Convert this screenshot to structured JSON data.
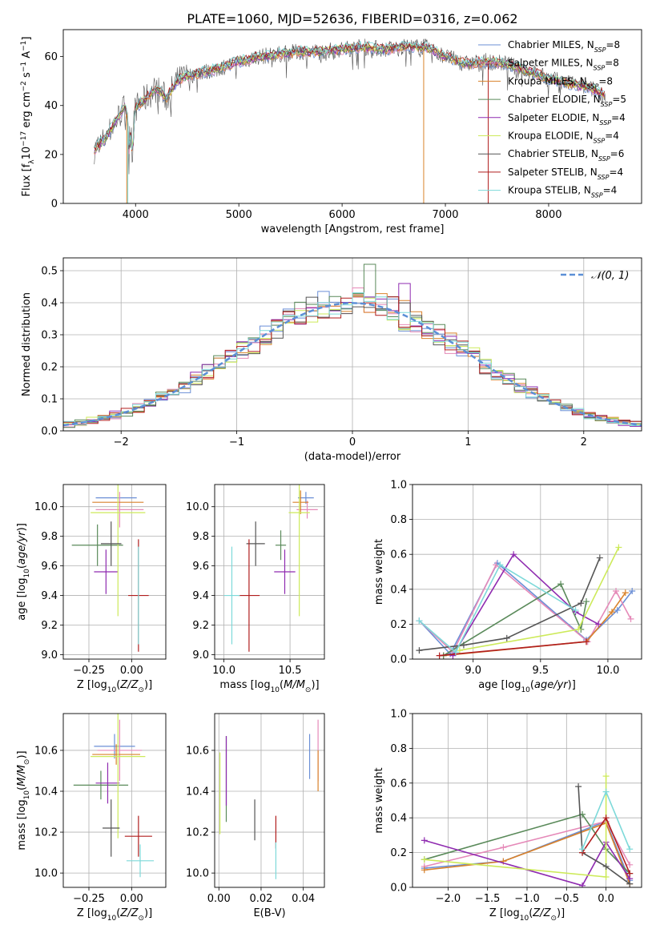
{
  "title": "PLATE=1060, MJD=52636, FIBERID=0316, z=0.062",
  "colors": {
    "Chabrier MILES": "#6b8fd6",
    "Salpeter MILES": "#e589b8",
    "Kroupa MILES": "#d9822b",
    "Chabrier ELODIE": "#5a8a5a",
    "Salpeter ELODIE": "#8f2bb0",
    "Kroupa ELODIE": "#cdea5a",
    "Chabrier STELIB": "#555555",
    "Salpeter STELIB": "#b01e1e",
    "Kroupa STELIB": "#7dd9d9",
    "normal": "#5b8fd6"
  },
  "legend_spectrum": [
    {
      "name": "Chabrier MILES",
      "nssp": "8"
    },
    {
      "name": "Salpeter MILES",
      "nssp": "8"
    },
    {
      "name": "Kroupa MILES",
      "nssp": "8"
    },
    {
      "name": "Chabrier ELODIE",
      "nssp": "5"
    },
    {
      "name": "Salpeter ELODIE",
      "nssp": "4"
    },
    {
      "name": "Kroupa ELODIE",
      "nssp": "4"
    },
    {
      "name": "Chabrier STELIB",
      "nssp": "6"
    },
    {
      "name": "Salpeter STELIB",
      "nssp": "4"
    },
    {
      "name": "Kroupa STELIB",
      "nssp": "4"
    }
  ],
  "chart_data": [
    {
      "id": "spectrum",
      "type": "line",
      "xlabel": "wavelength [Angstrom, rest frame]",
      "ylabel": "Flux [f_λ 10^-17 erg cm^-2 s^-1 A^-1]",
      "xlim": [
        3300,
        8900
      ],
      "ylim": [
        0,
        71
      ],
      "xticks": [
        4000,
        5000,
        6000,
        7000,
        8000
      ],
      "yticks": [
        0,
        20,
        40,
        60
      ],
      "x": [
        3600,
        3700,
        3800,
        3900,
        3950,
        4000,
        4100,
        4200,
        4300,
        4400,
        4500,
        4600,
        4800,
        5000,
        5200,
        5400,
        5600,
        5800,
        6000,
        6200,
        6400,
        6600,
        6800,
        7000,
        7200,
        7400,
        7600,
        7800,
        8000,
        8200,
        8400,
        8550
      ],
      "y": [
        22,
        26,
        33,
        40,
        28,
        39,
        43,
        47,
        43,
        50,
        52,
        53,
        55,
        58,
        60,
        61,
        62,
        62,
        63,
        64,
        63,
        64,
        64,
        60,
        57,
        58,
        57,
        54,
        51,
        49,
        47,
        44
      ],
      "grid": false,
      "legend": "top-right"
    },
    {
      "id": "residuals",
      "type": "line",
      "xlabel": "(data-model)/error",
      "ylabel": "Normed distribution",
      "xlim": [
        -2.5,
        2.5
      ],
      "ylim": [
        0,
        0.54
      ],
      "xticks": [
        -2,
        -1,
        0,
        1,
        2
      ],
      "yticks": [
        0.0,
        0.1,
        0.2,
        0.3,
        0.4,
        0.5
      ],
      "series": [
        {
          "name": "N(0,1)",
          "distribution": "normal",
          "mean": 0,
          "sd": 1
        }
      ],
      "grid": true,
      "legend": "top-right"
    },
    {
      "id": "age_vs_z",
      "type": "scatter",
      "xlabel": "Z [log10(Z/Z⊙)]",
      "ylabel": "age [log10(age/yr)]",
      "xlim": [
        -0.4,
        0.2
      ],
      "ylim": [
        8.97,
        10.15
      ],
      "xticks": [
        -0.25,
        0.0
      ],
      "yticks": [
        9.0,
        9.2,
        9.4,
        9.6,
        9.8,
        10.0
      ],
      "points": [
        {
          "series": "Chabrier MILES",
          "x": -0.09,
          "xerr": 0.12,
          "y": 10.06,
          "yerr": 0.0
        },
        {
          "series": "Salpeter MILES",
          "x": -0.07,
          "xerr": 0.14,
          "y": 9.98,
          "yerr": 0.12
        },
        {
          "series": "Kroupa MILES",
          "x": -0.08,
          "xerr": 0.15,
          "y": 10.03,
          "yerr": 0.0
        },
        {
          "series": "Chabrier ELODIE",
          "x": -0.2,
          "xerr": 0.15,
          "y": 9.74,
          "yerr": 0.14
        },
        {
          "series": "Salpeter ELODIE",
          "x": -0.15,
          "xerr": 0.07,
          "y": 9.56,
          "yerr": 0.15
        },
        {
          "series": "Kroupa ELODIE",
          "x": -0.08,
          "xerr": 0.16,
          "y": 9.96,
          "yerr": 0.7
        },
        {
          "series": "Chabrier STELIB",
          "x": -0.12,
          "xerr": 0.06,
          "y": 9.75,
          "yerr": 0.15
        },
        {
          "series": "Salpeter STELIB",
          "x": 0.04,
          "xerr": 0.06,
          "y": 9.4,
          "yerr": 0.38
        },
        {
          "series": "Kroupa STELIB",
          "x": 0.04,
          "xerr": 0.0,
          "y": 9.4,
          "yerr": 0.33
        }
      ],
      "grid": true
    },
    {
      "id": "age_vs_mass",
      "type": "scatter",
      "xlabel": "mass [log10(M/M⊙)]",
      "ylabel": "",
      "xlim": [
        9.93,
        10.76
      ],
      "ylim": [
        8.97,
        10.15
      ],
      "xticks": [
        10.0,
        10.5
      ],
      "yticks": [
        9.0,
        9.2,
        9.4,
        9.6,
        9.8,
        10.0
      ],
      "points": [
        {
          "series": "Chabrier MILES",
          "x": 10.62,
          "xerr": 0.06,
          "y": 10.06,
          "yerr": 0.04
        },
        {
          "series": "Salpeter MILES",
          "x": 10.63,
          "xerr": 0.08,
          "y": 9.98,
          "yerr": 0.06
        },
        {
          "series": "Kroupa MILES",
          "x": 10.58,
          "xerr": 0.06,
          "y": 10.03,
          "yerr": 0.08
        },
        {
          "series": "Chabrier ELODIE",
          "x": 10.43,
          "xerr": 0.04,
          "y": 9.74,
          "yerr": 0.1
        },
        {
          "series": "Salpeter ELODIE",
          "x": 10.46,
          "xerr": 0.08,
          "y": 9.56,
          "yerr": 0.15
        },
        {
          "series": "Kroupa ELODIE",
          "x": 10.57,
          "xerr": 0.08,
          "y": 9.96,
          "yerr": 0.7
        },
        {
          "series": "Chabrier STELIB",
          "x": 10.24,
          "xerr": 0.07,
          "y": 9.75,
          "yerr": 0.15
        },
        {
          "series": "Salpeter STELIB",
          "x": 10.19,
          "xerr": 0.08,
          "y": 9.4,
          "yerr": 0.38
        },
        {
          "series": "Kroupa STELIB",
          "x": 10.06,
          "xerr": 0.06,
          "y": 9.4,
          "yerr": 0.33
        }
      ],
      "grid": true
    },
    {
      "id": "massweight_vs_age",
      "type": "line",
      "xlabel": "age [log10(age/yr)]",
      "ylabel": "mass weight",
      "xlim": [
        8.55,
        10.25
      ],
      "ylim": [
        0,
        1.0
      ],
      "xticks": [
        9.0,
        9.5,
        10.0
      ],
      "yticks": [
        0.0,
        0.2,
        0.4,
        0.6,
        0.8,
        1.0
      ],
      "series": [
        {
          "name": "Chabrier MILES",
          "x": [
            8.6,
            8.83,
            9.18,
            9.84,
            10.07,
            10.18
          ],
          "y": [
            0.22,
            0.03,
            0.55,
            0.11,
            0.28,
            0.39
          ]
        },
        {
          "name": "Salpeter MILES",
          "x": [
            8.6,
            8.85,
            9.17,
            9.85,
            10.06,
            10.17
          ],
          "y": [
            0.22,
            0.04,
            0.54,
            0.1,
            0.39,
            0.23
          ]
        },
        {
          "name": "Kroupa MILES",
          "x": [
            8.78,
            9.84,
            10.03,
            10.13
          ],
          "y": [
            0.02,
            0.1,
            0.27,
            0.38
          ]
        },
        {
          "name": "Chabrier ELODIE",
          "x": [
            8.78,
            9.65,
            9.8,
            9.84
          ],
          "y": [
            0.02,
            0.43,
            0.17,
            0.33
          ]
        },
        {
          "name": "Salpeter ELODIE",
          "x": [
            8.85,
            9.3,
            9.76,
            9.93
          ],
          "y": [
            0.02,
            0.6,
            0.27,
            0.2
          ]
        },
        {
          "name": "Kroupa ELODIE",
          "x": [
            8.9,
            9.78,
            10.08
          ],
          "y": [
            0.05,
            0.17,
            0.64
          ]
        },
        {
          "name": "Chabrier STELIB",
          "x": [
            8.6,
            8.93,
            9.25,
            9.8,
            9.94
          ],
          "y": [
            0.05,
            0.08,
            0.12,
            0.32,
            0.58
          ]
        },
        {
          "name": "Salpeter STELIB",
          "x": [
            8.75,
            9.84
          ],
          "y": [
            0.02,
            0.1
          ]
        },
        {
          "name": "Kroupa STELIB",
          "x": [
            8.6,
            8.87,
            9.2,
            9.76
          ],
          "y": [
            0.22,
            0.04,
            0.54,
            0.28
          ]
        }
      ],
      "grid": true
    },
    {
      "id": "mass_vs_z",
      "type": "scatter",
      "xlabel": "Z [log10(Z/Z⊙)]",
      "ylabel": "mass [log10(M/M⊙)]",
      "xlim": [
        -0.4,
        0.2
      ],
      "ylim": [
        9.93,
        10.78
      ],
      "xticks": [
        -0.25,
        0.0
      ],
      "yticks": [
        10.0,
        10.2,
        10.4,
        10.6
      ],
      "points": [
        {
          "series": "Chabrier MILES",
          "x": -0.1,
          "xerr": 0.12,
          "y": 10.62,
          "yerr": 0.06
        },
        {
          "series": "Salpeter MILES",
          "x": -0.07,
          "xerr": 0.13,
          "y": 10.6,
          "yerr": 0.15
        },
        {
          "series": "Kroupa MILES",
          "x": -0.09,
          "xerr": 0.14,
          "y": 10.58,
          "yerr": 0.05
        },
        {
          "series": "Chabrier ELODIE",
          "x": -0.18,
          "xerr": 0.16,
          "y": 10.43,
          "yerr": 0.07
        },
        {
          "series": "Salpeter ELODIE",
          "x": -0.14,
          "xerr": 0.07,
          "y": 10.44,
          "yerr": 0.1
        },
        {
          "series": "Kroupa ELODIE",
          "x": -0.08,
          "xerr": 0.16,
          "y": 10.57,
          "yerr": 0.4
        },
        {
          "series": "Chabrier STELIB",
          "x": -0.12,
          "xerr": 0.05,
          "y": 10.22,
          "yerr": 0.14
        },
        {
          "series": "Salpeter STELIB",
          "x": 0.04,
          "xerr": 0.08,
          "y": 10.18,
          "yerr": 0.1
        },
        {
          "series": "Kroupa STELIB",
          "x": 0.05,
          "xerr": 0.08,
          "y": 10.06,
          "yerr": 0.08
        }
      ],
      "grid": true
    },
    {
      "id": "mass_vs_ebv",
      "type": "scatter",
      "xlabel": "E(B-V)",
      "ylabel": "",
      "xlim": [
        -0.002,
        0.05
      ],
      "ylim": [
        9.93,
        10.78
      ],
      "xticks": [
        0.0,
        0.02,
        0.04
      ],
      "yticks": [
        10.0,
        10.2,
        10.4,
        10.6
      ],
      "points": [
        {
          "series": "Chabrier MILES",
          "x": 0.043,
          "xerr": 0.0,
          "y": 10.57,
          "yerr": 0.11
        },
        {
          "series": "Salpeter MILES",
          "x": 0.047,
          "xerr": 0.0,
          "y": 10.6,
          "yerr": 0.15
        },
        {
          "series": "Kroupa MILES",
          "x": 0.047,
          "xerr": 0.0,
          "y": 10.5,
          "yerr": 0.1
        },
        {
          "series": "Chabrier ELODIE",
          "x": 0.0035,
          "xerr": 0.0,
          "y": 10.46,
          "yerr": 0.21
        },
        {
          "series": "Salpeter ELODIE",
          "x": 0.0035,
          "xerr": 0.0,
          "y": 10.5,
          "yerr": 0.17
        },
        {
          "series": "Kroupa ELODIE",
          "x": 0.0005,
          "xerr": 0.0,
          "y": 10.39,
          "yerr": 0.2
        },
        {
          "series": "Chabrier STELIB",
          "x": 0.017,
          "xerr": 0.0,
          "y": 10.26,
          "yerr": 0.1
        },
        {
          "series": "Salpeter STELIB",
          "x": 0.027,
          "xerr": 0.0,
          "y": 10.2,
          "yerr": 0.08
        },
        {
          "series": "Kroupa STELIB",
          "x": 0.027,
          "xerr": 0.0,
          "y": 10.06,
          "yerr": 0.09
        }
      ],
      "grid": true
    },
    {
      "id": "massweight_vs_z",
      "type": "line",
      "xlabel": "Z [log10(Z/Z⊙)]",
      "ylabel": "mass weight",
      "xlim": [
        -2.45,
        0.45
      ],
      "ylim": [
        0,
        1.0
      ],
      "xticks": [
        -2.0,
        -1.5,
        -1.0,
        -0.5,
        0.0
      ],
      "yticks": [
        0.0,
        0.2,
        0.4,
        0.6,
        0.8,
        1.0
      ],
      "series": [
        {
          "name": "Chabrier MILES",
          "x": [
            -2.3,
            -1.3,
            0.0,
            0.3
          ],
          "y": [
            0.11,
            0.15,
            0.38,
            0.04
          ]
        },
        {
          "name": "Salpeter MILES",
          "x": [
            -2.3,
            -1.3,
            0.0,
            0.3
          ],
          "y": [
            0.12,
            0.23,
            0.38,
            0.13
          ]
        },
        {
          "name": "Kroupa MILES",
          "x": [
            -2.3,
            -1.3,
            0.0,
            0.3
          ],
          "y": [
            0.1,
            0.15,
            0.37,
            0.02
          ]
        },
        {
          "name": "Chabrier ELODIE",
          "x": [
            -2.3,
            -0.3,
            0.0,
            0.3
          ],
          "y": [
            0.16,
            0.42,
            0.22,
            0.08
          ]
        },
        {
          "name": "Salpeter ELODIE",
          "x": [
            -2.3,
            -0.3,
            0.0,
            0.3
          ],
          "y": [
            0.27,
            0.01,
            0.26,
            0.05
          ]
        },
        {
          "name": "Kroupa ELODIE",
          "x": [
            -2.3,
            0.0,
            0.0
          ],
          "y": [
            0.16,
            0.06,
            0.64
          ]
        },
        {
          "name": "Chabrier STELIB",
          "x": [
            -0.35,
            -0.3,
            0.0,
            0.3
          ],
          "y": [
            0.58,
            0.2,
            0.12,
            0.02
          ]
        },
        {
          "name": "Salpeter STELIB",
          "x": [
            -0.3,
            0.0,
            0.3
          ],
          "y": [
            0.2,
            0.4,
            0.08
          ]
        },
        {
          "name": "Kroupa STELIB",
          "x": [
            -0.3,
            0.0,
            0.3
          ],
          "y": [
            0.22,
            0.55,
            0.22
          ]
        }
      ],
      "grid": true
    }
  ]
}
